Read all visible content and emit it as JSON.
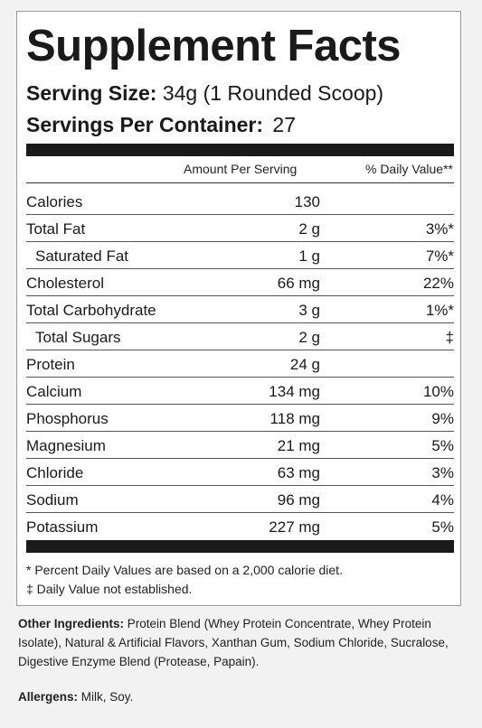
{
  "panel": {
    "title": "Supplement Facts",
    "serving_size_label": "Serving Size:",
    "serving_size_value": "34g (1 Rounded Scoop)",
    "servings_per_container_label": "Servings Per Container:",
    "servings_per_container_value": "27"
  },
  "table": {
    "header_amount": "Amount Per Serving",
    "header_dv": "% Daily Value**",
    "rows": [
      {
        "name": "Calories",
        "amount": "130",
        "dv": ""
      },
      {
        "name": "Total Fat",
        "amount": "2 g",
        "dv": "3%*"
      },
      {
        "name": "Saturated Fat",
        "amount": "1 g",
        "dv": "7%*"
      },
      {
        "name": "Cholesterol",
        "amount": "66 mg",
        "dv": "22%"
      },
      {
        "name": "Total Carbohydrate",
        "amount": "3 g",
        "dv": "1%*"
      },
      {
        "name": "Total Sugars",
        "amount": "2 g",
        "dv": "‡"
      },
      {
        "name": "Protein",
        "amount": "24 g",
        "dv": ""
      },
      {
        "name": "Calcium",
        "amount": "134 mg",
        "dv": "10%"
      },
      {
        "name": "Phosphorus",
        "amount": "118 mg",
        "dv": "9%"
      },
      {
        "name": "Magnesium",
        "amount": "21 mg",
        "dv": "5%"
      },
      {
        "name": "Chloride",
        "amount": "63 mg",
        "dv": "3%"
      },
      {
        "name": "Sodium",
        "amount": "96 mg",
        "dv": "4%"
      },
      {
        "name": "Potassium",
        "amount": "227 mg",
        "dv": "5%"
      }
    ]
  },
  "footnotes": {
    "percent_note": "* Percent Daily Values are based on a 2,000 calorie diet.",
    "dagger_note": "‡ Daily Value not established."
  },
  "ingredients": {
    "label": "Other Ingredients:",
    "text": " Protein Blend (Whey Protein Concentrate, Whey Protein Isolate), Natural & Artificial Flavors, Xanthan Gum, Sodium Chloride, Sucralose, Digestive Enzyme Blend (Protease, Papain)."
  },
  "allergens": {
    "label": "Allergens:",
    "text": " Milk, Soy."
  }
}
